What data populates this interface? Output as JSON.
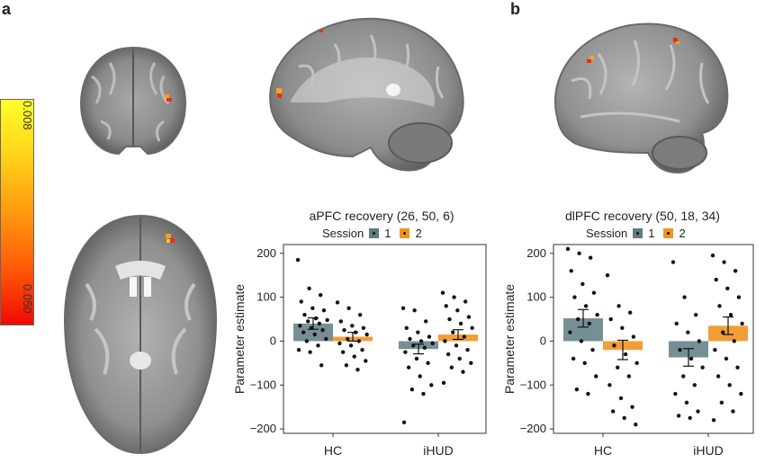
{
  "panels": {
    "a": "a",
    "b": "b"
  },
  "colorbar": {
    "top_label": "0.008",
    "bottom_label": "0.050"
  },
  "colors": {
    "hc_session1": "#5e7b82",
    "session2": "#f09422",
    "point": "#111111",
    "activation": "#f05010"
  },
  "legend": {
    "title": "Session",
    "items": [
      "1",
      "2"
    ]
  },
  "chart_data": [
    {
      "type": "bar",
      "title": "aPFC recovery (26, 50, 6)",
      "ylabel": "Parameter estimate",
      "xlabel": "",
      "categories": [
        "HC",
        "iHUD"
      ],
      "ylim": [
        -210,
        220
      ],
      "yticks": [
        200,
        100,
        0,
        -100,
        -200
      ],
      "series": [
        {
          "name": "1",
          "values": [
            40,
            -18
          ],
          "errors": [
            13,
            11
          ]
        },
        {
          "name": "2",
          "values": [
            10,
            15
          ],
          "errors": [
            10,
            11
          ]
        }
      ],
      "points": {
        "HC_1": [
          185,
          120,
          105,
          90,
          75,
          70,
          60,
          52,
          48,
          45,
          40,
          35,
          30,
          25,
          20,
          15,
          5,
          0,
          -10,
          -20,
          -25,
          -55
        ],
        "HC_2": [
          88,
          75,
          60,
          45,
          35,
          30,
          25,
          20,
          15,
          5,
          0,
          -5,
          -10,
          -20,
          -25,
          -35,
          -45,
          -55,
          -65
        ],
        "iHUD_1": [
          75,
          70,
          45,
          30,
          20,
          10,
          5,
          0,
          -5,
          -10,
          -15,
          -25,
          -40,
          -50,
          -60,
          -80,
          -100,
          -110,
          -120,
          -185
        ],
        "iHUD_2": [
          110,
          100,
          90,
          80,
          70,
          55,
          50,
          40,
          30,
          20,
          10,
          0,
          -10,
          -20,
          -30,
          -40,
          -50,
          -60,
          -70,
          -95
        ]
      }
    },
    {
      "type": "bar",
      "title": "dlPFC recovery (50, 18, 34)",
      "ylabel": "Parameter estimate",
      "xlabel": "",
      "categories": [
        "HC",
        "iHUD"
      ],
      "ylim": [
        -210,
        220
      ],
      "yticks": [
        200,
        100,
        0,
        -100,
        -200
      ],
      "series": [
        {
          "name": "1",
          "values": [
            52,
            -37
          ],
          "errors": [
            20,
            20
          ]
        },
        {
          "name": "2",
          "values": [
            -20,
            35
          ],
          "errors": [
            22,
            20
          ]
        }
      ],
      "points": {
        "HC_1": [
          210,
          200,
          190,
          160,
          130,
          110,
          100,
          80,
          60,
          50,
          40,
          20,
          0,
          -20,
          -40,
          -50,
          -80,
          -110,
          -120
        ],
        "HC_2": [
          150,
          80,
          65,
          50,
          30,
          10,
          -10,
          -30,
          -50,
          -60,
          -80,
          -100,
          -130,
          -150,
          -160,
          -175,
          -190
        ],
        "iHUD_1": [
          180,
          100,
          60,
          40,
          20,
          0,
          -20,
          -40,
          -60,
          -80,
          -100,
          -120,
          -140,
          -160,
          -170,
          -175
        ],
        "iHUD_2": [
          195,
          180,
          160,
          140,
          120,
          100,
          80,
          60,
          40,
          20,
          0,
          -20,
          -40,
          -60,
          -80,
          -100,
          -120,
          -140,
          -160,
          -180
        ]
      }
    }
  ]
}
